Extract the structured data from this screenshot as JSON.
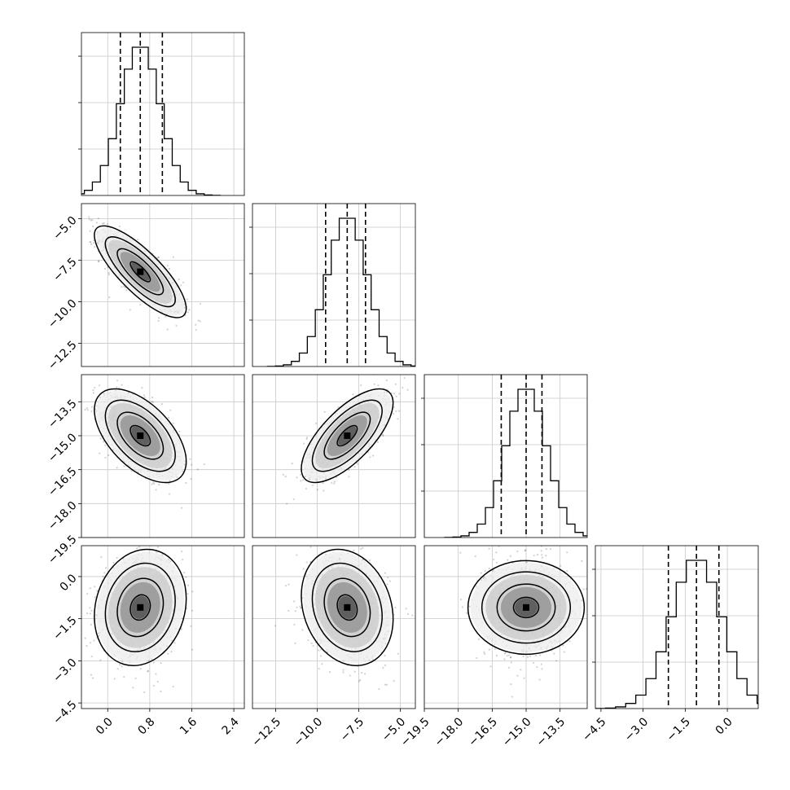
{
  "chart_data": {
    "type": "corner",
    "grid": true,
    "dims": 4,
    "params": [
      {
        "range": [
          -0.5,
          2.6
        ],
        "ticks": [
          0.0,
          0.8,
          1.6,
          2.4
        ],
        "tick_labels": [
          "0.0",
          "0.8",
          "1.6",
          "2.4"
        ],
        "median": 0.62,
        "q16": 0.24,
        "q84": 1.04,
        "std": 0.38
      },
      {
        "range": [
          -13.9,
          -4.1
        ],
        "ticks": [
          -12.5,
          -10.0,
          -7.5,
          -5.0
        ],
        "tick_labels": [
          "−12.5",
          "−10.0",
          "−7.5",
          "−5.0"
        ],
        "median": -8.2,
        "q16": -9.5,
        "q84": -7.1,
        "std": 1.2
      },
      {
        "range": [
          -19.5,
          -12.3
        ],
        "ticks": [
          -19.5,
          -18.0,
          -16.5,
          -15.0,
          -13.5
        ],
        "tick_labels": [
          "−19.5",
          "−18.0",
          "−16.5",
          "−15.0",
          "−13.5"
        ],
        "median": -15.0,
        "q16": -16.1,
        "q84": -14.3,
        "std": 0.9
      },
      {
        "range": [
          -4.7,
          1.1
        ],
        "ticks": [
          -4.5,
          -3.0,
          -1.5,
          0.0
        ],
        "tick_labels": [
          "−4.5",
          "−3.0",
          "−1.5",
          "0.0"
        ],
        "median": -1.1,
        "q16": -2.1,
        "q84": -0.3,
        "std": 0.9
      }
    ],
    "correlations": [
      [
        0,
        1,
        -0.8
      ],
      [
        0,
        2,
        -0.55
      ],
      [
        1,
        2,
        0.7
      ],
      [
        0,
        3,
        0.15
      ],
      [
        1,
        3,
        -0.2
      ],
      [
        2,
        3,
        0.0
      ]
    ],
    "hist_bins": 20,
    "quantile_line_style": "dashed",
    "contour_levels": 4
  }
}
